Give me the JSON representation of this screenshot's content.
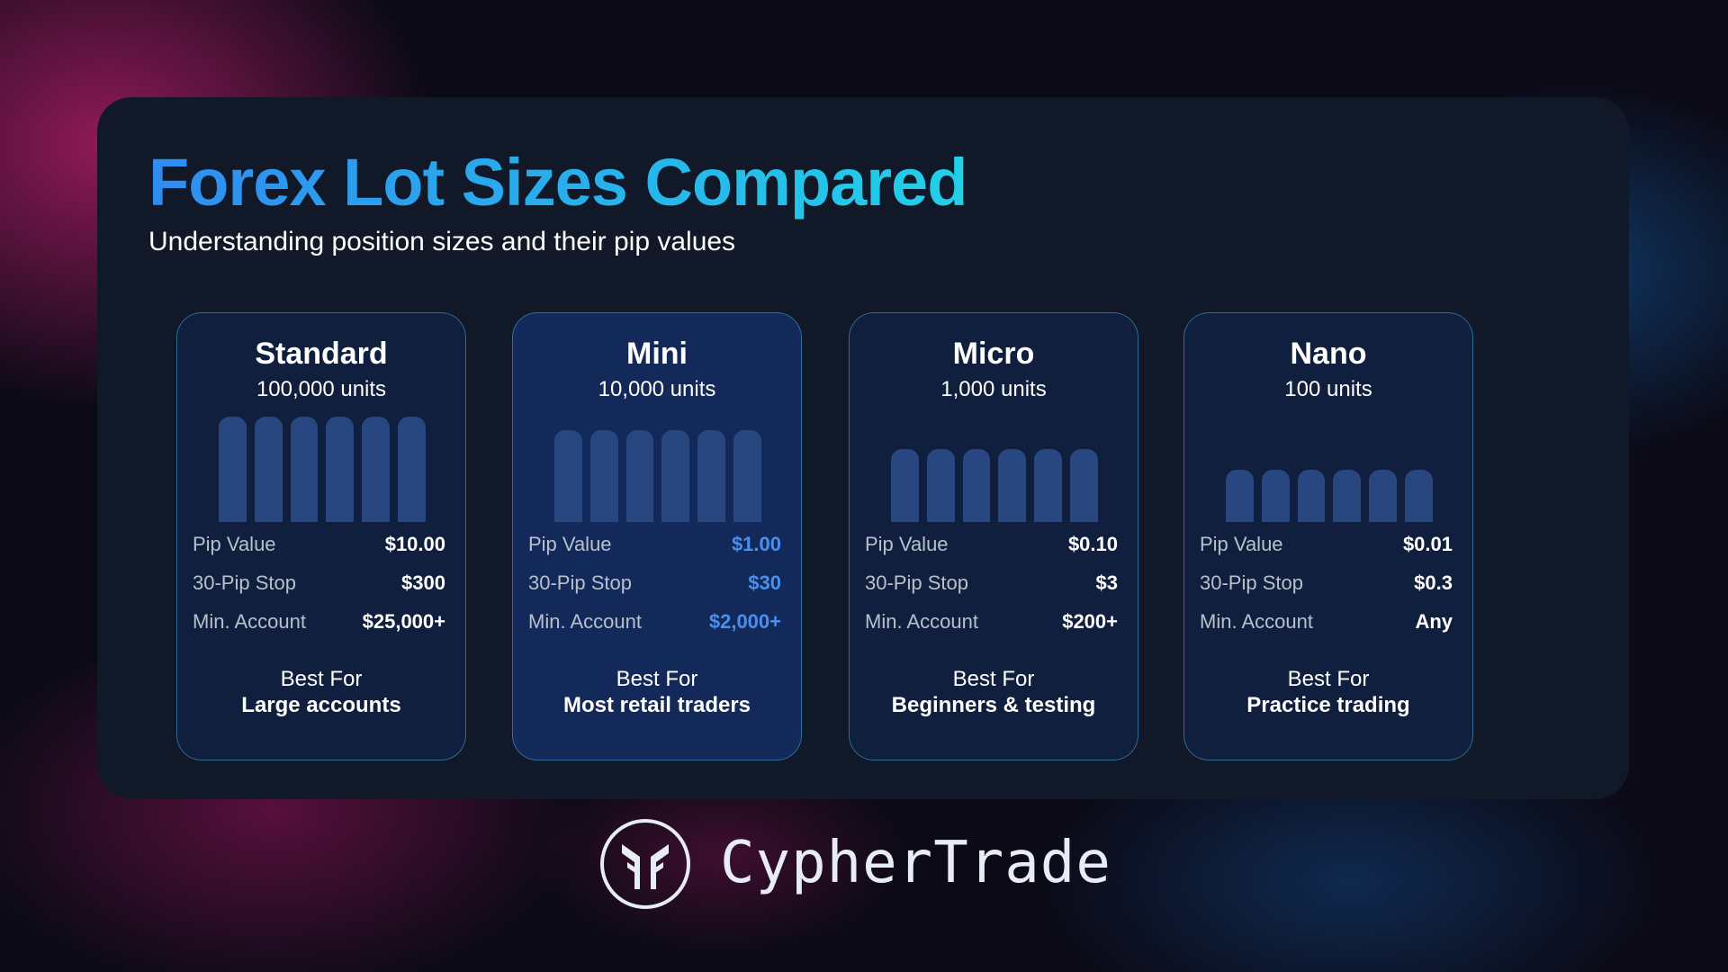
{
  "header": {
    "title": "Forex Lot Sizes Compared",
    "subtitle": "Understanding position sizes and their pip values"
  },
  "cards": [
    {
      "name": "Standard",
      "units": "100,000 units",
      "bar_level": 1.0,
      "rows": [
        {
          "label": "Pip Value",
          "value": "$10.00"
        },
        {
          "label": "30-Pip Stop",
          "value": "$300"
        },
        {
          "label": "Min. Account",
          "value": "$25,000+"
        }
      ],
      "best_for_label": "Best For",
      "best_for": "Large accounts"
    },
    {
      "name": "Mini",
      "units": "10,000 units",
      "bar_level": 0.87,
      "highlight": true,
      "rows": [
        {
          "label": "Pip Value",
          "value": "$1.00"
        },
        {
          "label": "30-Pip Stop",
          "value": "$30"
        },
        {
          "label": "Min. Account",
          "value": "$2,000+"
        }
      ],
      "best_for_label": "Best For",
      "best_for": "Most retail traders"
    },
    {
      "name": "Micro",
      "units": "1,000 units",
      "bar_level": 0.69,
      "rows": [
        {
          "label": "Pip Value",
          "value": "$0.10"
        },
        {
          "label": "30-Pip Stop",
          "value": "$3"
        },
        {
          "label": "Min. Account",
          "value": "$200+"
        }
      ],
      "best_for_label": "Best For",
      "best_for": "Beginners & testing"
    },
    {
      "name": "Nano",
      "units": "100 units",
      "bar_level": 0.5,
      "rows": [
        {
          "label": "Pip Value",
          "value": "$0.01"
        },
        {
          "label": "30-Pip Stop",
          "value": "$0.3"
        },
        {
          "label": "Min. Account",
          "value": "Any"
        }
      ],
      "best_for_label": "Best For",
      "best_for": "Practice trading"
    }
  ],
  "brand": {
    "name": "CypherTrade"
  },
  "colors": {
    "title_start": "#2f8cf0",
    "title_end": "#22d0e8",
    "highlight_value": "#4a8ff0",
    "bar": "#28467f"
  }
}
